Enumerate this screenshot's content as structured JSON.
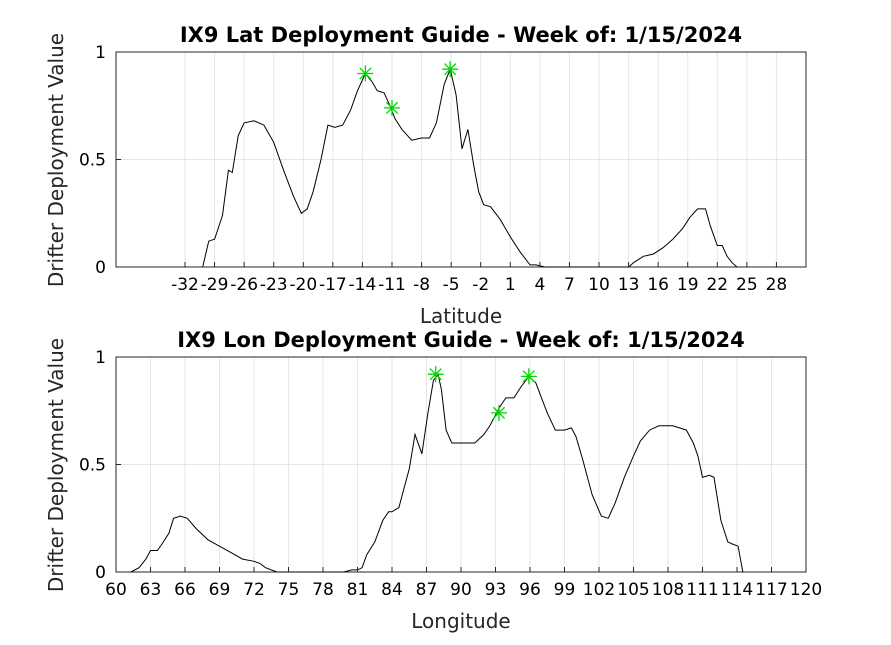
{
  "chart_data": [
    {
      "type": "line",
      "title": "IX9 Lat Deployment Guide - Week of: 1/15/2024",
      "xlabel": "Latitude",
      "ylabel": "Drifter Deployment Value",
      "xlim": [
        -39,
        31
      ],
      "ylim": [
        0,
        1
      ],
      "xticks": [
        -32,
        -29,
        -26,
        -23,
        -20,
        -17,
        -14,
        -11,
        -8,
        -5,
        -2,
        1,
        4,
        7,
        10,
        13,
        16,
        19,
        22,
        25,
        28
      ],
      "xticklabels": [
        "-32",
        "-29",
        "-26",
        "-23",
        "-20",
        "-17",
        "-14",
        "-11",
        "-8",
        "-5",
        "-2",
        "1",
        "4",
        "7",
        "10",
        "13",
        "16",
        "19",
        "22",
        "25",
        "28"
      ],
      "yticks": [
        0,
        0.5,
        1
      ],
      "yticklabels": [
        "0",
        "0.5",
        "1"
      ],
      "grid": true,
      "line_color": "#000000",
      "marker_color": "#00d800",
      "series": [
        {
          "x": [
            -30.2,
            -29.6,
            -29.0,
            -28.2,
            -27.6,
            -27.2,
            -26.6,
            -26.0,
            -25.0,
            -24.0,
            -23.0,
            -22.0,
            -21.0,
            -20.2,
            -19.6,
            -19.0,
            -18.2,
            -17.5,
            -16.8,
            -16.0,
            -15.2,
            -14.5,
            -13.7,
            -13.0,
            -12.5,
            -11.8,
            -11.2,
            -10.7,
            -10.0,
            -9.0,
            -8.0,
            -7.2,
            -6.5,
            -5.7,
            -5.1,
            -4.5,
            -3.9,
            -3.3,
            -2.7,
            -2.2,
            -1.7,
            -1.0,
            0.0,
            1.0,
            2.0,
            3.0,
            3.6,
            4.5,
            5.5,
            7.0,
            8.5,
            10.0,
            11.5,
            12.2,
            13.0,
            13.5,
            14.5,
            15.5,
            16.5,
            17.5,
            18.5,
            19.2,
            20.0,
            20.8,
            21.3,
            22.0,
            22.5,
            23.0,
            23.5,
            24.0
          ],
          "y": [
            0.0,
            0.12,
            0.13,
            0.24,
            0.45,
            0.44,
            0.61,
            0.67,
            0.68,
            0.66,
            0.58,
            0.45,
            0.33,
            0.25,
            0.27,
            0.35,
            0.5,
            0.66,
            0.65,
            0.66,
            0.73,
            0.82,
            0.9,
            0.86,
            0.82,
            0.81,
            0.75,
            0.69,
            0.64,
            0.59,
            0.6,
            0.6,
            0.67,
            0.85,
            0.92,
            0.8,
            0.55,
            0.64,
            0.47,
            0.35,
            0.29,
            0.28,
            0.22,
            0.14,
            0.07,
            0.01,
            0.01,
            0.0,
            0.0,
            0.0,
            0.0,
            0.0,
            0.0,
            0.0,
            0.0,
            0.02,
            0.05,
            0.06,
            0.09,
            0.13,
            0.18,
            0.23,
            0.27,
            0.27,
            0.19,
            0.1,
            0.1,
            0.05,
            0.02,
            0.0
          ]
        }
      ],
      "markers": [
        {
          "x": -13.7,
          "y": 0.9
        },
        {
          "x": -11.0,
          "y": 0.74
        },
        {
          "x": -5.1,
          "y": 0.92
        }
      ]
    },
    {
      "type": "line",
      "title": "IX9 Lon Deployment Guide - Week of: 1/15/2024",
      "xlabel": "Longitude",
      "ylabel": "Drifter Deployment Value",
      "xlim": [
        60,
        120
      ],
      "ylim": [
        0,
        1
      ],
      "xticks": [
        60,
        63,
        66,
        69,
        72,
        75,
        78,
        81,
        84,
        87,
        90,
        93,
        96,
        99,
        102,
        105,
        108,
        111,
        114,
        117,
        120
      ],
      "xticklabels": [
        "60",
        "63",
        "66",
        "69",
        "72",
        "75",
        "78",
        "81",
        "84",
        "87",
        "90",
        "93",
        "96",
        "99",
        "102",
        "105",
        "108",
        "111",
        "114",
        "117",
        "120"
      ],
      "yticks": [
        0,
        0.5,
        1
      ],
      "yticklabels": [
        "0",
        "0.5",
        "1"
      ],
      "grid": true,
      "line_color": "#000000",
      "marker_color": "#00d800",
      "series": [
        {
          "x": [
            61.3,
            62.0,
            62.6,
            63.0,
            63.6,
            64.0,
            64.6,
            65.0,
            65.6,
            66.2,
            67.0,
            68.0,
            69.0,
            70.0,
            71.0,
            72.0,
            72.5,
            73.0,
            74.0,
            76.0,
            78.0,
            79.0,
            79.8,
            80.5,
            81.0,
            81.4,
            81.8,
            82.5,
            83.2,
            83.7,
            84.0,
            84.6,
            85.0,
            85.5,
            86.0,
            86.6,
            87.1,
            87.6,
            88.0,
            88.3,
            88.7,
            89.2,
            89.6,
            90.0,
            90.6,
            91.2,
            92.0,
            92.5,
            93.0,
            93.4,
            93.9,
            94.6,
            95.2,
            95.9,
            96.5,
            97.0,
            97.5,
            98.2,
            99.0,
            99.6,
            100.0,
            100.6,
            101.4,
            102.2,
            102.8,
            103.4,
            104.2,
            105.0,
            105.6,
            106.4,
            107.2,
            107.8,
            108.4,
            109.0,
            109.6,
            110.2,
            110.6,
            111.0,
            111.6,
            112.0,
            112.6,
            113.2,
            113.6,
            114.1,
            114.5
          ],
          "y": [
            0.0,
            0.02,
            0.06,
            0.1,
            0.1,
            0.13,
            0.18,
            0.25,
            0.26,
            0.25,
            0.2,
            0.15,
            0.12,
            0.09,
            0.06,
            0.05,
            0.04,
            0.02,
            0.0,
            0.0,
            0.0,
            0.0,
            0.0,
            0.01,
            0.01,
            0.02,
            0.08,
            0.14,
            0.24,
            0.28,
            0.28,
            0.3,
            0.38,
            0.48,
            0.64,
            0.55,
            0.73,
            0.89,
            0.92,
            0.85,
            0.66,
            0.6,
            0.6,
            0.6,
            0.6,
            0.6,
            0.64,
            0.68,
            0.73,
            0.77,
            0.81,
            0.81,
            0.86,
            0.91,
            0.88,
            0.81,
            0.74,
            0.66,
            0.66,
            0.67,
            0.63,
            0.52,
            0.36,
            0.26,
            0.25,
            0.32,
            0.44,
            0.54,
            0.61,
            0.66,
            0.68,
            0.68,
            0.68,
            0.67,
            0.66,
            0.6,
            0.54,
            0.44,
            0.45,
            0.44,
            0.24,
            0.14,
            0.13,
            0.12,
            0.0
          ]
        }
      ],
      "markers": [
        {
          "x": 87.8,
          "y": 0.92
        },
        {
          "x": 93.3,
          "y": 0.74
        },
        {
          "x": 95.9,
          "y": 0.91
        }
      ]
    }
  ]
}
